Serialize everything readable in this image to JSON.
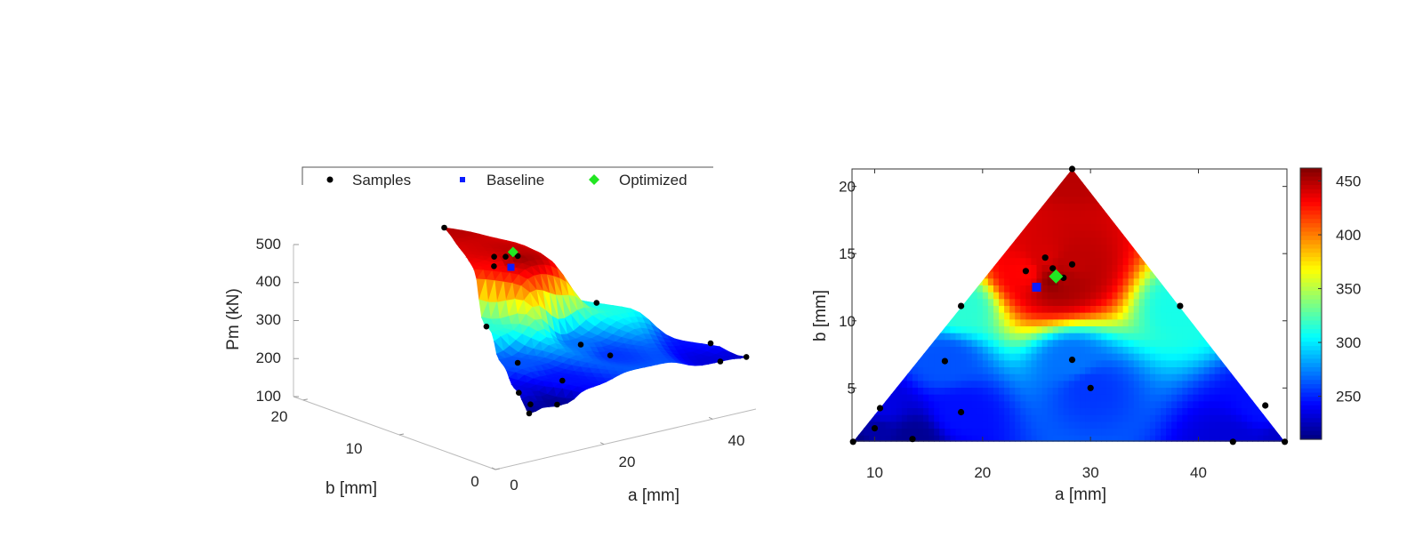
{
  "legend": {
    "entries": [
      {
        "label": "Samples",
        "color": "#000000",
        "marker": "dot"
      },
      {
        "label": "Baseline",
        "color": "#0a1cff",
        "marker": "square"
      },
      {
        "label": "Optimized",
        "color": "#22e622",
        "marker": "diamond"
      }
    ]
  },
  "chart_data": [
    {
      "type": "surface",
      "title": "",
      "xlabel": "a [mm]",
      "ylabel": "b [mm]",
      "zlabel": "Pm (kN)",
      "xticks": [
        0,
        20,
        40
      ],
      "yticks": [
        0,
        10,
        20
      ],
      "zticks": [
        100,
        200,
        300,
        400,
        500
      ],
      "xlim": [
        0,
        48
      ],
      "ylim": [
        0,
        21
      ],
      "zlim": [
        100,
        500
      ],
      "colormap": "jet",
      "samples": [
        {
          "a": 8,
          "b": 1,
          "pm": 212
        },
        {
          "a": 10,
          "b": 2,
          "pm": 220
        },
        {
          "a": 10.5,
          "b": 3.5,
          "pm": 235
        },
        {
          "a": 13.5,
          "b": 1.2,
          "pm": 215
        },
        {
          "a": 16.5,
          "b": 7,
          "pm": 262
        },
        {
          "a": 18,
          "b": 3.2,
          "pm": 245
        },
        {
          "a": 18,
          "b": 11.1,
          "pm": 315
        },
        {
          "a": 24,
          "b": 13.7,
          "pm": 430
        },
        {
          "a": 25.8,
          "b": 14.7,
          "pm": 440
        },
        {
          "a": 26.5,
          "b": 13.9,
          "pm": 445
        },
        {
          "a": 27.5,
          "b": 13.2,
          "pm": 450
        },
        {
          "a": 28.3,
          "b": 14.2,
          "pm": 446
        },
        {
          "a": 28.3,
          "b": 21.3,
          "pm": 448
        },
        {
          "a": 28.3,
          "b": 7.1,
          "pm": 270
        },
        {
          "a": 30,
          "b": 5,
          "pm": 255
        },
        {
          "a": 38.3,
          "b": 11.1,
          "pm": 310
        },
        {
          "a": 43.2,
          "b": 1,
          "pm": 232
        },
        {
          "a": 46.2,
          "b": 3.7,
          "pm": 245
        },
        {
          "a": 48,
          "b": 1,
          "pm": 228
        }
      ],
      "baseline": {
        "a": 25,
        "b": 12.5,
        "pm": 435
      },
      "optimized": {
        "a": 26.8,
        "b": 13.3,
        "pm": 462
      }
    },
    {
      "type": "heatmap",
      "title": "",
      "xlabel": "a [mm]",
      "ylabel": "b [mm]",
      "xticks": [
        10,
        20,
        30,
        40
      ],
      "yticks": [
        5,
        10,
        15,
        20
      ],
      "xlim": [
        7.9,
        48.2
      ],
      "ylim": [
        1.05,
        21.3
      ],
      "domain": "triangle",
      "triangle_vertices": [
        [
          8,
          1
        ],
        [
          28.3,
          21.3
        ],
        [
          48,
          1
        ]
      ],
      "colormap": "jet",
      "colorbar": {
        "min": 210,
        "max": 462,
        "ticks": [
          250,
          300,
          350,
          400,
          450
        ]
      },
      "samples": [
        {
          "a": 8,
          "b": 1
        },
        {
          "a": 10,
          "b": 2
        },
        {
          "a": 10.5,
          "b": 3.5
        },
        {
          "a": 13.5,
          "b": 1.2
        },
        {
          "a": 16.5,
          "b": 7
        },
        {
          "a": 18,
          "b": 3.2
        },
        {
          "a": 18,
          "b": 11.1
        },
        {
          "a": 24,
          "b": 13.7
        },
        {
          "a": 25.8,
          "b": 14.7
        },
        {
          "a": 26.5,
          "b": 13.9
        },
        {
          "a": 27.5,
          "b": 13.2
        },
        {
          "a": 28.3,
          "b": 14.2
        },
        {
          "a": 28.3,
          "b": 21.3
        },
        {
          "a": 28.3,
          "b": 7.1
        },
        {
          "a": 30,
          "b": 5
        },
        {
          "a": 38.3,
          "b": 11.1
        },
        {
          "a": 43.2,
          "b": 1
        },
        {
          "a": 46.2,
          "b": 3.7
        },
        {
          "a": 48,
          "b": 1
        }
      ],
      "baseline": {
        "a": 25,
        "b": 12.5
      },
      "optimized": {
        "a": 26.8,
        "b": 13.3
      }
    }
  ]
}
